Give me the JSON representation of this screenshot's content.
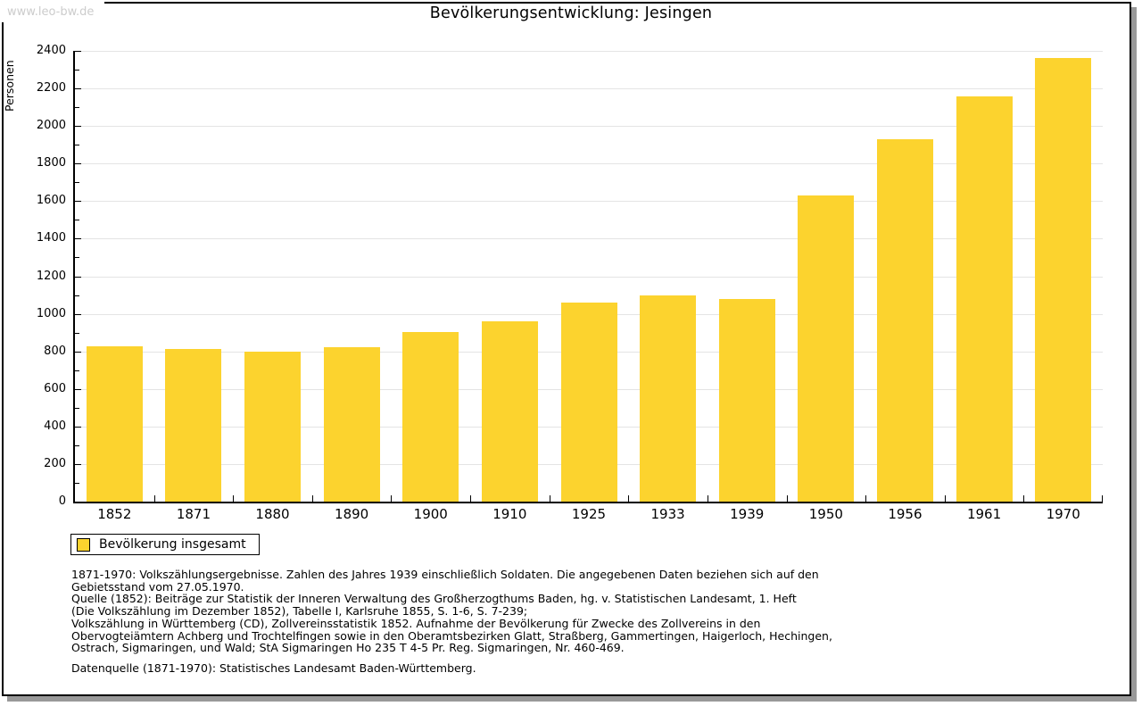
{
  "watermark": "www.leo-bw.de",
  "title": "Bevölkerungsentwicklung: Jesingen",
  "chart_data": {
    "type": "bar",
    "title": "Bevölkerungsentwicklung: Jesingen",
    "categories": [
      "1852",
      "1871",
      "1880",
      "1890",
      "1900",
      "1910",
      "1925",
      "1933",
      "1939",
      "1950",
      "1956",
      "1961",
      "1970"
    ],
    "values": [
      825,
      815,
      800,
      820,
      905,
      960,
      1060,
      1100,
      1080,
      1630,
      1930,
      2160,
      2360
    ],
    "series_name": "Bevölkerung insgesamt",
    "xlabel": "",
    "ylabel": "Personen",
    "ylim": [
      0,
      2400
    ],
    "yticks": [
      0,
      200,
      400,
      600,
      800,
      1000,
      1200,
      1400,
      1600,
      1800,
      2000,
      2200,
      2400
    ],
    "minor_tick_step": 100,
    "grid": true,
    "legend_position": "bottom-left",
    "bar_color": "#FCD32E"
  },
  "legend": {
    "label": "Bevölkerung insgesamt"
  },
  "footer": {
    "lines": [
      "1871-1970: Volkszählungsergebnisse. Zahlen des Jahres 1939 einschließlich Soldaten. Die angegebenen Daten beziehen sich auf den",
      "Gebietsstand vom 27.05.1970.",
      "Quelle (1852): Beiträge zur Statistik der Inneren Verwaltung des Großherzogthums Baden, hg. v. Statistischen Landesamt, 1. Heft",
      "(Die Volkszählung im Dezember 1852), Tabelle I, Karlsruhe 1855, S. 1-6, S. 7-239;",
      "Volkszählung in Württemberg (CD), Zollvereinsstatistik 1852. Aufnahme der Bevölkerung für Zwecke des Zollvereins in den",
      "Obervogteiämtern Achberg und Trochtelfingen sowie in den Oberamtsbezirken Glatt, Straßberg, Gammertingen, Haigerloch, Hechingen,",
      "Ostrach, Sigmaringen, und Wald; StA Sigmaringen Ho 235 T 4-5 Pr. Reg. Sigmaringen, Nr. 460-469."
    ],
    "datasource": "Datenquelle (1871-1970): Statistisches Landesamt Baden-Württemberg."
  },
  "colors": {
    "bar": "#FCD32E",
    "grid": "#E4E4E4",
    "watermark": "#CCCCCC",
    "axis": "#000000",
    "frame_shadow": "#999999"
  }
}
